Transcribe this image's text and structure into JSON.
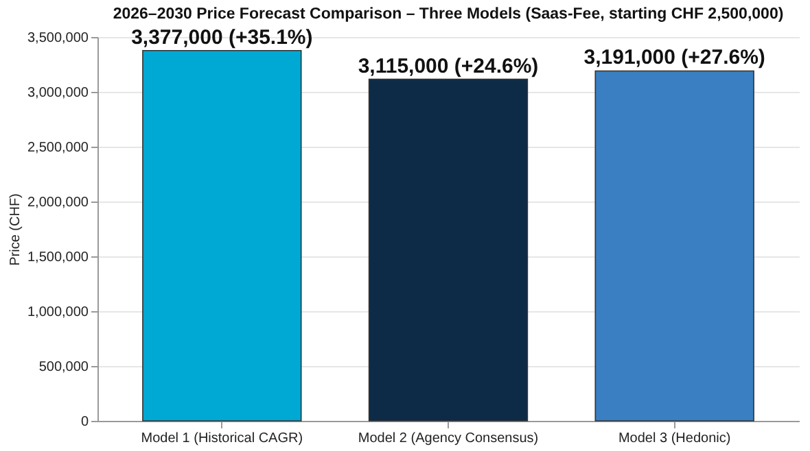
{
  "chart_data": {
    "type": "bar",
    "title": "2026–2030 Price Forecast Comparison – Three Models (Saas-Fee, starting CHF 2,500,000)",
    "ylabel": "Price (CHF)",
    "categories": [
      "Model 1 (Historical CAGR)",
      "Model 2 (Agency Consensus)",
      "Model 3 (Hedonic)"
    ],
    "values": [
      3377000,
      3115000,
      3191000
    ],
    "colors": [
      "#00a9d4",
      "#0d2a47",
      "#3a7fc1"
    ],
    "value_labels": [
      "3,377,000 (+35.1%)",
      "3,115,000 (+24.6%)",
      "3,191,000 (+27.6%)"
    ],
    "ylim": [
      0,
      3500000
    ],
    "yticks": [
      0,
      {
        "value": 500000,
        "label": "500,000"
      },
      {
        "value": 1000000,
        "label": "1,000,000"
      },
      {
        "value": 1500000,
        "label": "1,500,000"
      },
      {
        "value": 2000000,
        "label": "2,000,000"
      },
      {
        "value": 2500000,
        "label": "2,500,000"
      },
      {
        "value": 3000000,
        "label": "3,000,000"
      },
      {
        "value": 3500000,
        "label": "3,500,000"
      }
    ],
    "grid": "y"
  }
}
